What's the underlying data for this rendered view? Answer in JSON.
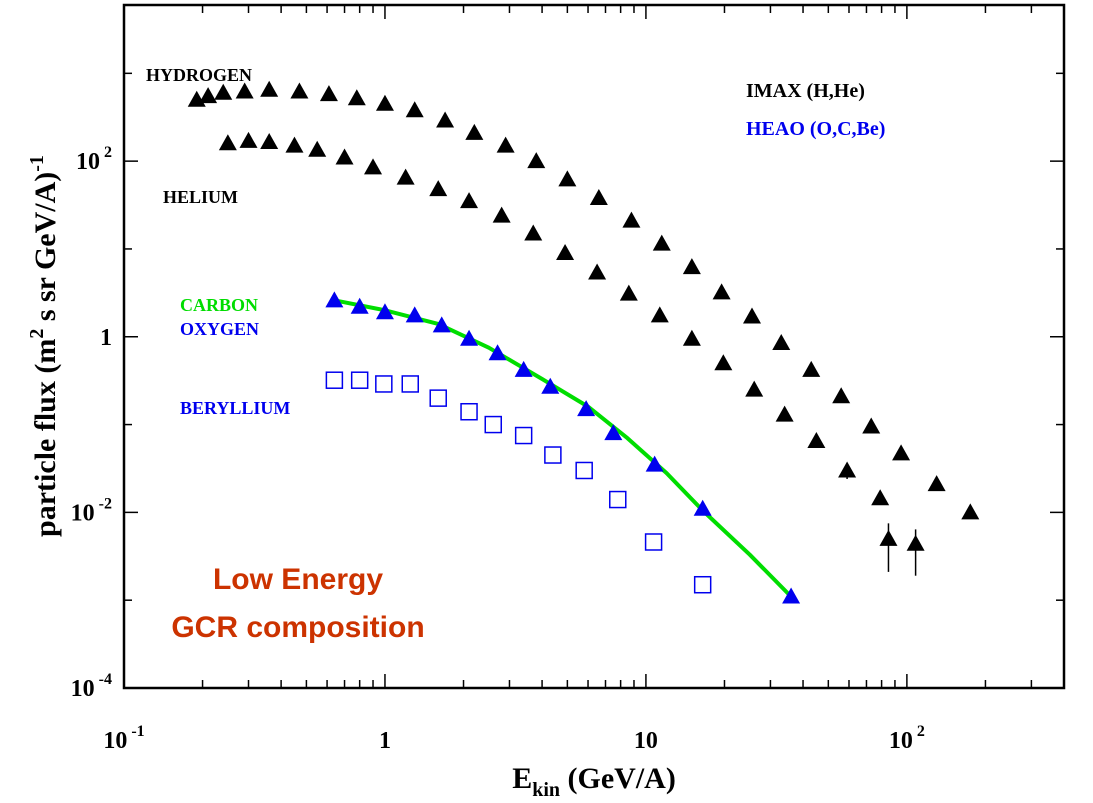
{
  "chart_data": {
    "type": "scatter",
    "xscale": "log",
    "yscale": "log",
    "xlim": [
      0.1,
      400
    ],
    "ylim": [
      0.0001,
      6000
    ],
    "xlabel_main": "E",
    "xlabel_sub": "kin",
    "xlabel_rest": " (GeV/A)",
    "ylabel_main": "particle flux (m",
    "ylabel_sup": "2",
    "ylabel_mid": " s sr GeV/A)",
    "ylabel_sup2": "-1",
    "x_ticks": [
      {
        "value": 0.1,
        "base": "10",
        "exp": "-1"
      },
      {
        "value": 1,
        "base": "1",
        "exp": ""
      },
      {
        "value": 10,
        "base": "10",
        "exp": ""
      },
      {
        "value": 100,
        "base": "10",
        "exp": "2"
      }
    ],
    "y_ticks": [
      {
        "value": 0.0001,
        "base": "10",
        "exp": "-4"
      },
      {
        "value": 0.01,
        "base": "10",
        "exp": "-2"
      },
      {
        "value": 1,
        "base": "1",
        "exp": ""
      },
      {
        "value": 100,
        "base": "10",
        "exp": "2"
      }
    ],
    "legend": [
      {
        "text": "IMAX (H,He)",
        "color": "#000000"
      },
      {
        "text": "HEAO (O,C,Be)",
        "color": "#0000ee"
      }
    ],
    "series_labels": [
      {
        "text": "HYDROGEN",
        "color": "#000000"
      },
      {
        "text": "HELIUM",
        "color": "#000000"
      },
      {
        "text": "CARBON",
        "color": "#00dd00"
      },
      {
        "text": "OXYGEN",
        "color": "#0000ee"
      },
      {
        "text": "BERYLLIUM",
        "color": "#0000ee"
      }
    ],
    "annotation": [
      "Low Energy",
      "GCR composition"
    ],
    "annotation_color": "#cc3300",
    "series": [
      {
        "name": "HYDROGEN",
        "marker": "triangle",
        "color": "#000000",
        "points": [
          [
            0.19,
            500
          ],
          [
            0.21,
            550
          ],
          [
            0.24,
            600
          ],
          [
            0.29,
            620
          ],
          [
            0.36,
            650
          ],
          [
            0.47,
            620
          ],
          [
            0.61,
            580
          ],
          [
            0.78,
            520
          ],
          [
            1.0,
            450
          ],
          [
            1.3,
            380
          ],
          [
            1.7,
            290
          ],
          [
            2.2,
            210
          ],
          [
            2.9,
            150
          ],
          [
            3.8,
            100
          ],
          [
            5.0,
            62
          ],
          [
            6.6,
            38
          ],
          [
            8.8,
            21
          ],
          [
            11.5,
            11.5
          ],
          [
            15.0,
            6.2
          ],
          [
            19.5,
            3.2
          ],
          [
            25.5,
            1.7
          ],
          [
            33.0,
            0.85
          ],
          [
            43.0,
            0.42
          ],
          [
            56.0,
            0.21
          ],
          [
            73.0,
            0.095
          ],
          [
            95.0,
            0.047
          ],
          [
            130.0,
            0.021
          ],
          [
            175.0,
            0.01
          ]
        ]
      },
      {
        "name": "HELIUM",
        "marker": "triangle",
        "color": "#000000",
        "points": [
          [
            0.25,
            160
          ],
          [
            0.3,
            170
          ],
          [
            0.36,
            165
          ],
          [
            0.45,
            150
          ],
          [
            0.55,
            135
          ],
          [
            0.7,
            110
          ],
          [
            0.9,
            85
          ],
          [
            1.2,
            65
          ],
          [
            1.6,
            48
          ],
          [
            2.1,
            35
          ],
          [
            2.8,
            24
          ],
          [
            3.7,
            15
          ],
          [
            4.9,
            9
          ],
          [
            6.5,
            5.4
          ],
          [
            8.6,
            3.1
          ],
          [
            11.3,
            1.75
          ],
          [
            15.0,
            0.95
          ],
          [
            19.8,
            0.5
          ],
          [
            26.0,
            0.25
          ],
          [
            34.0,
            0.13
          ],
          [
            45.0,
            0.065
          ],
          [
            59.0,
            0.03
          ],
          [
            79.0,
            0.0145
          ],
          [
            85.0,
            0.005
          ],
          [
            108.0,
            0.0044
          ]
        ]
      },
      {
        "name": "OXYGEN",
        "marker": "triangle",
        "color": "#0000ee",
        "points": [
          [
            0.64,
            2.6
          ],
          [
            0.8,
            2.2
          ],
          [
            1.0,
            1.9
          ],
          [
            1.3,
            1.75
          ],
          [
            1.65,
            1.35
          ],
          [
            2.1,
            0.95
          ],
          [
            2.7,
            0.65
          ],
          [
            3.4,
            0.42
          ],
          [
            4.3,
            0.27
          ],
          [
            5.9,
            0.15
          ],
          [
            7.5,
            0.08
          ],
          [
            10.8,
            0.035
          ],
          [
            16.5,
            0.011
          ],
          [
            36.0,
            0.0011
          ]
        ]
      },
      {
        "name": "BERYLLIUM",
        "marker": "square",
        "color": "#0000ee",
        "points": [
          [
            0.64,
            0.32
          ],
          [
            0.8,
            0.32
          ],
          [
            0.99,
            0.29
          ],
          [
            1.25,
            0.29
          ],
          [
            1.6,
            0.2
          ],
          [
            2.1,
            0.14
          ],
          [
            2.6,
            0.1
          ],
          [
            3.4,
            0.075
          ],
          [
            4.4,
            0.045
          ],
          [
            5.8,
            0.03
          ],
          [
            7.8,
            0.014
          ],
          [
            10.7,
            0.0046
          ],
          [
            16.5,
            0.0015
          ]
        ]
      },
      {
        "name": "CARBON",
        "type": "line",
        "color": "#00dd00",
        "points": [
          [
            0.64,
            2.6
          ],
          [
            1.0,
            2.0
          ],
          [
            1.6,
            1.4
          ],
          [
            2.5,
            0.75
          ],
          [
            4.0,
            0.33
          ],
          [
            6.0,
            0.16
          ],
          [
            8.5,
            0.07
          ],
          [
            12.0,
            0.028
          ],
          [
            16.5,
            0.0105
          ],
          [
            25.0,
            0.0033
          ],
          [
            36.0,
            0.0011
          ]
        ]
      }
    ],
    "error_bars": [
      {
        "x": 85.0,
        "y": 0.005,
        "low": 0.0021,
        "high": 0.0075
      },
      {
        "x": 108.0,
        "y": 0.0044,
        "low": 0.0019,
        "high": 0.0064
      },
      {
        "x": 59.0,
        "y": 0.03,
        "low": 0.024,
        "high": 0.036
      }
    ],
    "grid": false
  }
}
